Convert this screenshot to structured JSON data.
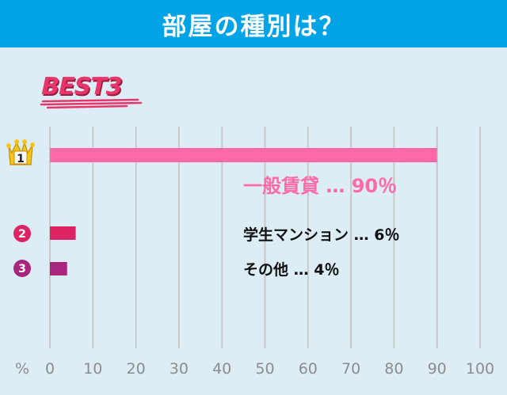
{
  "header": {
    "title": "部屋の種別は？"
  },
  "badge": {
    "text": "BEST3"
  },
  "chart_data": {
    "type": "bar",
    "orientation": "horizontal",
    "categories": [
      "一般賃貸",
      "学生マンション",
      "その他"
    ],
    "ranks": [
      "1",
      "2",
      "3"
    ],
    "values": [
      90,
      6,
      4
    ],
    "unit": "%",
    "labels": [
      "一般賃貸 … 90％",
      "学生マンション … 6％",
      "その他 … 4％"
    ],
    "xlabel": "%",
    "xlim": [
      0,
      100
    ],
    "xticks": [
      0,
      10,
      20,
      30,
      40,
      50,
      60,
      70,
      80,
      90,
      100
    ],
    "grid": true,
    "colors": [
      "#ff69a8",
      "#dc2363",
      "#a8267e"
    ]
  },
  "colors": {
    "header_bg": "#00a3e6",
    "background": "#dcedf6",
    "grid": "#c8c8c8",
    "crown": "#f6c51a",
    "badge": "#e8356a"
  }
}
